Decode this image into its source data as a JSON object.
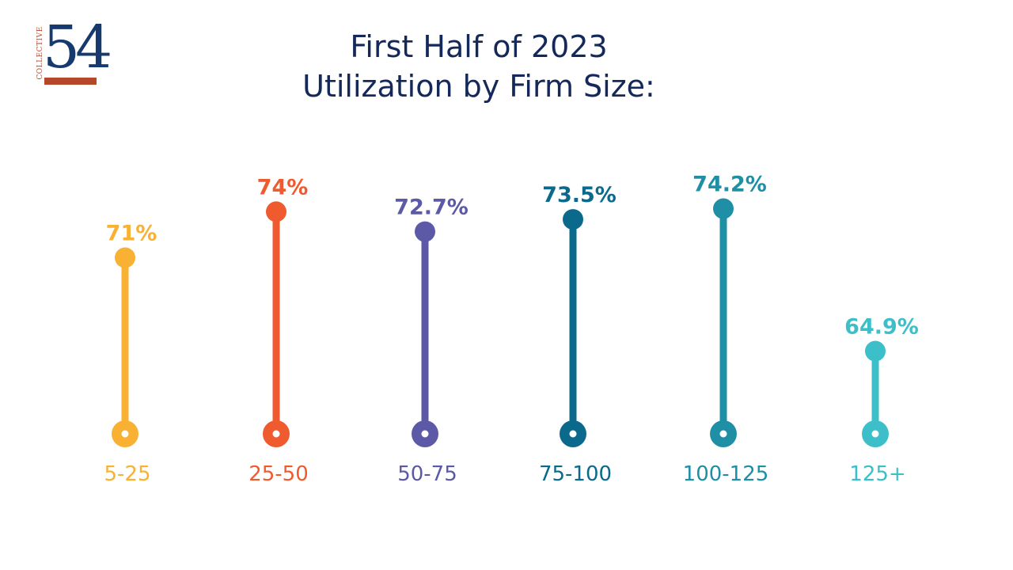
{
  "logo": {
    "text": "COLLECTIVE",
    "number": "54"
  },
  "title_line1": "First Half of 2023",
  "title_line2": "Utilization by Firm Size:",
  "chart_data": {
    "type": "lollipop",
    "categories": [
      "5-25",
      "25-50",
      "50-75",
      "75-100",
      "100-125",
      "125+"
    ],
    "values": [
      71,
      74,
      72.7,
      73.5,
      74.2,
      64.9
    ],
    "value_labels": [
      "71%",
      "74%",
      "72.7%",
      "73.5%",
      "74.2%",
      "64.9%"
    ],
    "colors": [
      "#f8b133",
      "#ef5a2e",
      "#5c5aa7",
      "#0b6a8c",
      "#1f8fa6",
      "#3cbfc8"
    ],
    "title": "First Half of 2023 Utilization by Firm Size:",
    "xlabel": "",
    "ylabel": "",
    "ylim": [
      50,
      80
    ]
  }
}
